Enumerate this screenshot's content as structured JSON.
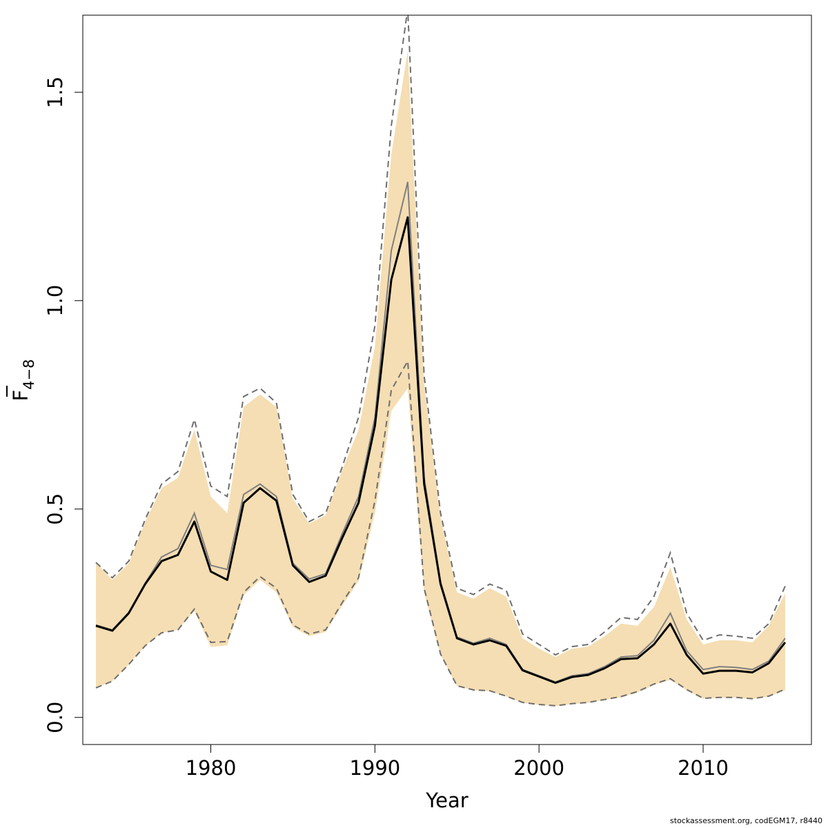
{
  "chart_data": {
    "type": "line",
    "xlabel": "Year",
    "ylabel_main": "F",
    "ylabel_sub": "4−8",
    "xlim": [
      1972.2,
      2016.6
    ],
    "ylim": [
      -0.065,
      1.685
    ],
    "xticks": [
      1980,
      1990,
      2000,
      2010
    ],
    "yticks": [
      0.0,
      0.5,
      1.0,
      1.5
    ],
    "ytick_labels": [
      "0.0",
      "0.5",
      "1.0",
      "1.5"
    ],
    "colors": {
      "band": "#f5deb3",
      "estimate": "#000000",
      "previous_estimate": "#7f7f7f",
      "dashed_bounds": "#6e6e6e"
    },
    "x": [
      1973,
      1974,
      1975,
      1976,
      1977,
      1978,
      1979,
      1980,
      1981,
      1982,
      1983,
      1984,
      1985,
      1986,
      1987,
      1988,
      1989,
      1990,
      1991,
      1992,
      1993,
      1994,
      1995,
      1996,
      1997,
      1998,
      1999,
      2000,
      2001,
      2002,
      2003,
      2004,
      2005,
      2006,
      2007,
      2008,
      2009,
      2010,
      2011,
      2012,
      2013,
      2014,
      2015
    ],
    "series": [
      {
        "role": "band_lower",
        "values": [
          0.071,
          0.087,
          0.127,
          0.172,
          0.203,
          0.21,
          0.255,
          0.169,
          0.173,
          0.293,
          0.33,
          0.3,
          0.217,
          0.195,
          0.205,
          0.268,
          0.327,
          0.49,
          0.735,
          0.79,
          0.3,
          0.15,
          0.075,
          0.065,
          0.063,
          0.05,
          0.035,
          0.03,
          0.027,
          0.032,
          0.035,
          0.042,
          0.048,
          0.06,
          0.078,
          0.09,
          0.065,
          0.045,
          0.047,
          0.047,
          0.044,
          0.05,
          0.065
        ]
      },
      {
        "role": "band_upper",
        "values": [
          0.372,
          0.33,
          0.37,
          0.47,
          0.55,
          0.575,
          0.69,
          0.53,
          0.49,
          0.745,
          0.775,
          0.745,
          0.525,
          0.465,
          0.485,
          0.593,
          0.69,
          0.89,
          1.35,
          1.6,
          0.8,
          0.48,
          0.3,
          0.285,
          0.31,
          0.29,
          0.19,
          0.165,
          0.145,
          0.165,
          0.17,
          0.195,
          0.225,
          0.22,
          0.265,
          0.36,
          0.235,
          0.175,
          0.185,
          0.185,
          0.18,
          0.22,
          0.298
        ]
      },
      {
        "role": "dashed_lower",
        "values": [
          0.071,
          0.087,
          0.127,
          0.172,
          0.203,
          0.21,
          0.26,
          0.18,
          0.182,
          0.3,
          0.338,
          0.31,
          0.222,
          0.2,
          0.21,
          0.275,
          0.335,
          0.52,
          0.785,
          0.855,
          0.31,
          0.152,
          0.076,
          0.066,
          0.064,
          0.051,
          0.036,
          0.031,
          0.028,
          0.033,
          0.036,
          0.043,
          0.05,
          0.062,
          0.08,
          0.093,
          0.067,
          0.046,
          0.048,
          0.048,
          0.045,
          0.051,
          0.068
        ]
      },
      {
        "role": "dashed_upper",
        "values": [
          0.372,
          0.335,
          0.375,
          0.475,
          0.56,
          0.59,
          0.715,
          0.555,
          0.53,
          0.77,
          0.79,
          0.755,
          0.535,
          0.47,
          0.49,
          0.6,
          0.72,
          0.94,
          1.42,
          1.7,
          0.82,
          0.49,
          0.31,
          0.295,
          0.32,
          0.305,
          0.2,
          0.175,
          0.15,
          0.17,
          0.175,
          0.205,
          0.24,
          0.235,
          0.29,
          0.395,
          0.25,
          0.185,
          0.198,
          0.195,
          0.19,
          0.225,
          0.315
        ]
      },
      {
        "role": "previous_estimate",
        "values": [
          0.222,
          0.21,
          0.252,
          0.322,
          0.385,
          0.405,
          0.49,
          0.365,
          0.355,
          0.535,
          0.56,
          0.53,
          0.37,
          0.332,
          0.345,
          0.44,
          0.53,
          0.72,
          1.12,
          1.285,
          0.575,
          0.325,
          0.193,
          0.178,
          0.19,
          0.175,
          0.115,
          0.1,
          0.085,
          0.1,
          0.105,
          0.122,
          0.145,
          0.148,
          0.185,
          0.25,
          0.16,
          0.115,
          0.122,
          0.12,
          0.115,
          0.135,
          0.19
        ]
      },
      {
        "role": "estimate",
        "values": [
          0.22,
          0.208,
          0.25,
          0.32,
          0.375,
          0.39,
          0.47,
          0.35,
          0.33,
          0.515,
          0.55,
          0.52,
          0.365,
          0.325,
          0.34,
          0.43,
          0.515,
          0.7,
          1.05,
          1.2,
          0.56,
          0.32,
          0.19,
          0.175,
          0.185,
          0.172,
          0.113,
          0.098,
          0.083,
          0.097,
          0.102,
          0.118,
          0.14,
          0.142,
          0.175,
          0.225,
          0.15,
          0.105,
          0.112,
          0.112,
          0.108,
          0.13,
          0.18
        ]
      }
    ]
  },
  "footer": {
    "credit": "stockassessment.org, codEGM17, r8440"
  }
}
